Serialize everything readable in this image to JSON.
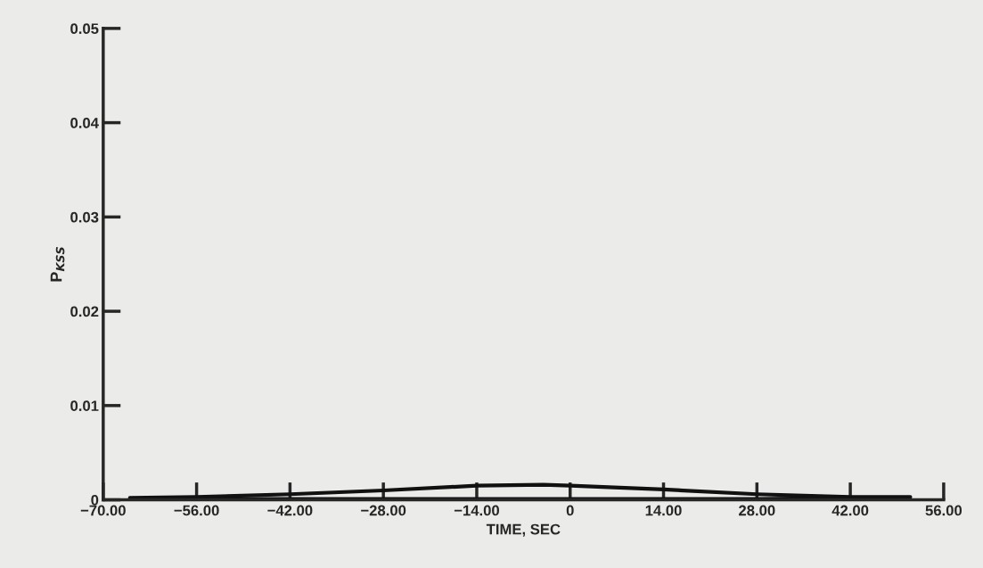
{
  "chart_data": {
    "type": "line",
    "xlabel": "TIME, SEC",
    "ylabel": "P$_{KSS}$",
    "xlim": [
      -70,
      56
    ],
    "ylim": [
      0,
      0.05
    ],
    "xticks": [
      {
        "value": -70,
        "label": "−70.00"
      },
      {
        "value": -56,
        "label": "−56.00"
      },
      {
        "value": -42,
        "label": "−42.00"
      },
      {
        "value": -28,
        "label": "−28.00"
      },
      {
        "value": -14,
        "label": "−14.00"
      },
      0,
      {
        "value": 14,
        "label": "14.00"
      },
      {
        "value": 28,
        "label": "28.00"
      },
      {
        "value": 42,
        "label": "42.00"
      },
      {
        "value": 56,
        "label": "56.00"
      }
    ],
    "yticks": [
      0,
      0.01,
      0.02,
      0.03,
      0.04,
      0.05
    ],
    "grid": false,
    "legend": false,
    "series": [
      {
        "color": "#111111",
        "x": [
          -66,
          -56,
          -42,
          -28,
          -14,
          -4,
          0,
          14,
          28,
          42,
          51
        ],
        "values": [
          0.0002,
          0.0003,
          0.0006,
          0.001,
          0.0015,
          0.0016,
          0.0015,
          0.0011,
          0.0006,
          0.0003,
          0.0003
        ]
      },
      {
        "color": "#111111",
        "x": [
          -63,
          -56,
          -42,
          -28,
          -14,
          0,
          14,
          28,
          42,
          48
        ],
        "values": [
          0.0002,
          0.0001,
          0.0001,
          0.0001,
          0.0001,
          0.0001,
          0.0001,
          0.0001,
          0.0002,
          0.0002
        ]
      }
    ]
  }
}
